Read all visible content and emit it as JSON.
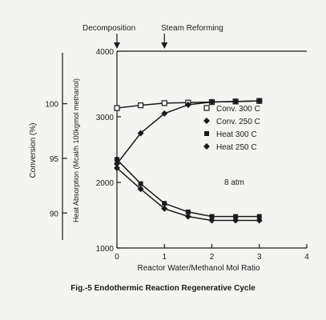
{
  "chart_data": {
    "type": "line",
    "caption": "Fig.-5 Endothermic Reaction Regenerative Cycle",
    "xlabel": "Reactor Water/Methanol Mol Ratio",
    "ylabel_left": "Conversion (%)",
    "ylabel_right": "Heat Absorption (Mcal/h 100kgmol methanol)",
    "xlim": [
      0,
      4
    ],
    "ylim_left": [
      86.8,
      104.8
    ],
    "ylim_right": [
      1000,
      4000
    ],
    "x_ticks": [
      "0",
      "1",
      "2",
      "3",
      "4"
    ],
    "y_ticks_left": [
      "90",
      "95",
      "100"
    ],
    "y_ticks_right": [
      "1000",
      "2000",
      "3000",
      "4000"
    ],
    "annotations": {
      "decomposition": "Decomposition",
      "steam_reforming": "Steam Reforming",
      "pressure": "8 atm"
    },
    "series": [
      {
        "name": "Conv. 300 C",
        "marker": "open-square",
        "axis": "left",
        "x": [
          0,
          0.5,
          1,
          1.5,
          2,
          2.5,
          3
        ],
        "y": [
          99.6,
          99.85,
          100.05,
          100.1,
          100.15,
          100.2,
          100.25
        ]
      },
      {
        "name": "Conv. 250 C",
        "marker": "diamond",
        "axis": "left",
        "x": [
          0,
          0.5,
          1,
          1.5,
          2,
          2.5,
          3
        ],
        "y": [
          94.5,
          97.3,
          99.1,
          99.9,
          100.15,
          100.2,
          100.25
        ]
      },
      {
        "name": "Heat 300 C",
        "marker": "filled-square",
        "axis": "right",
        "x": [
          0,
          0.5,
          1,
          1.5,
          2,
          2.5,
          3
        ],
        "y": [
          2350,
          1980,
          1680,
          1550,
          1480,
          1480,
          1480
        ]
      },
      {
        "name": "Heat 250 C",
        "marker": "diamond",
        "axis": "right",
        "x": [
          0,
          0.5,
          1,
          1.5,
          2,
          2.5,
          3
        ],
        "y": [
          2220,
          1900,
          1600,
          1480,
          1420,
          1420,
          1420
        ]
      }
    ]
  }
}
